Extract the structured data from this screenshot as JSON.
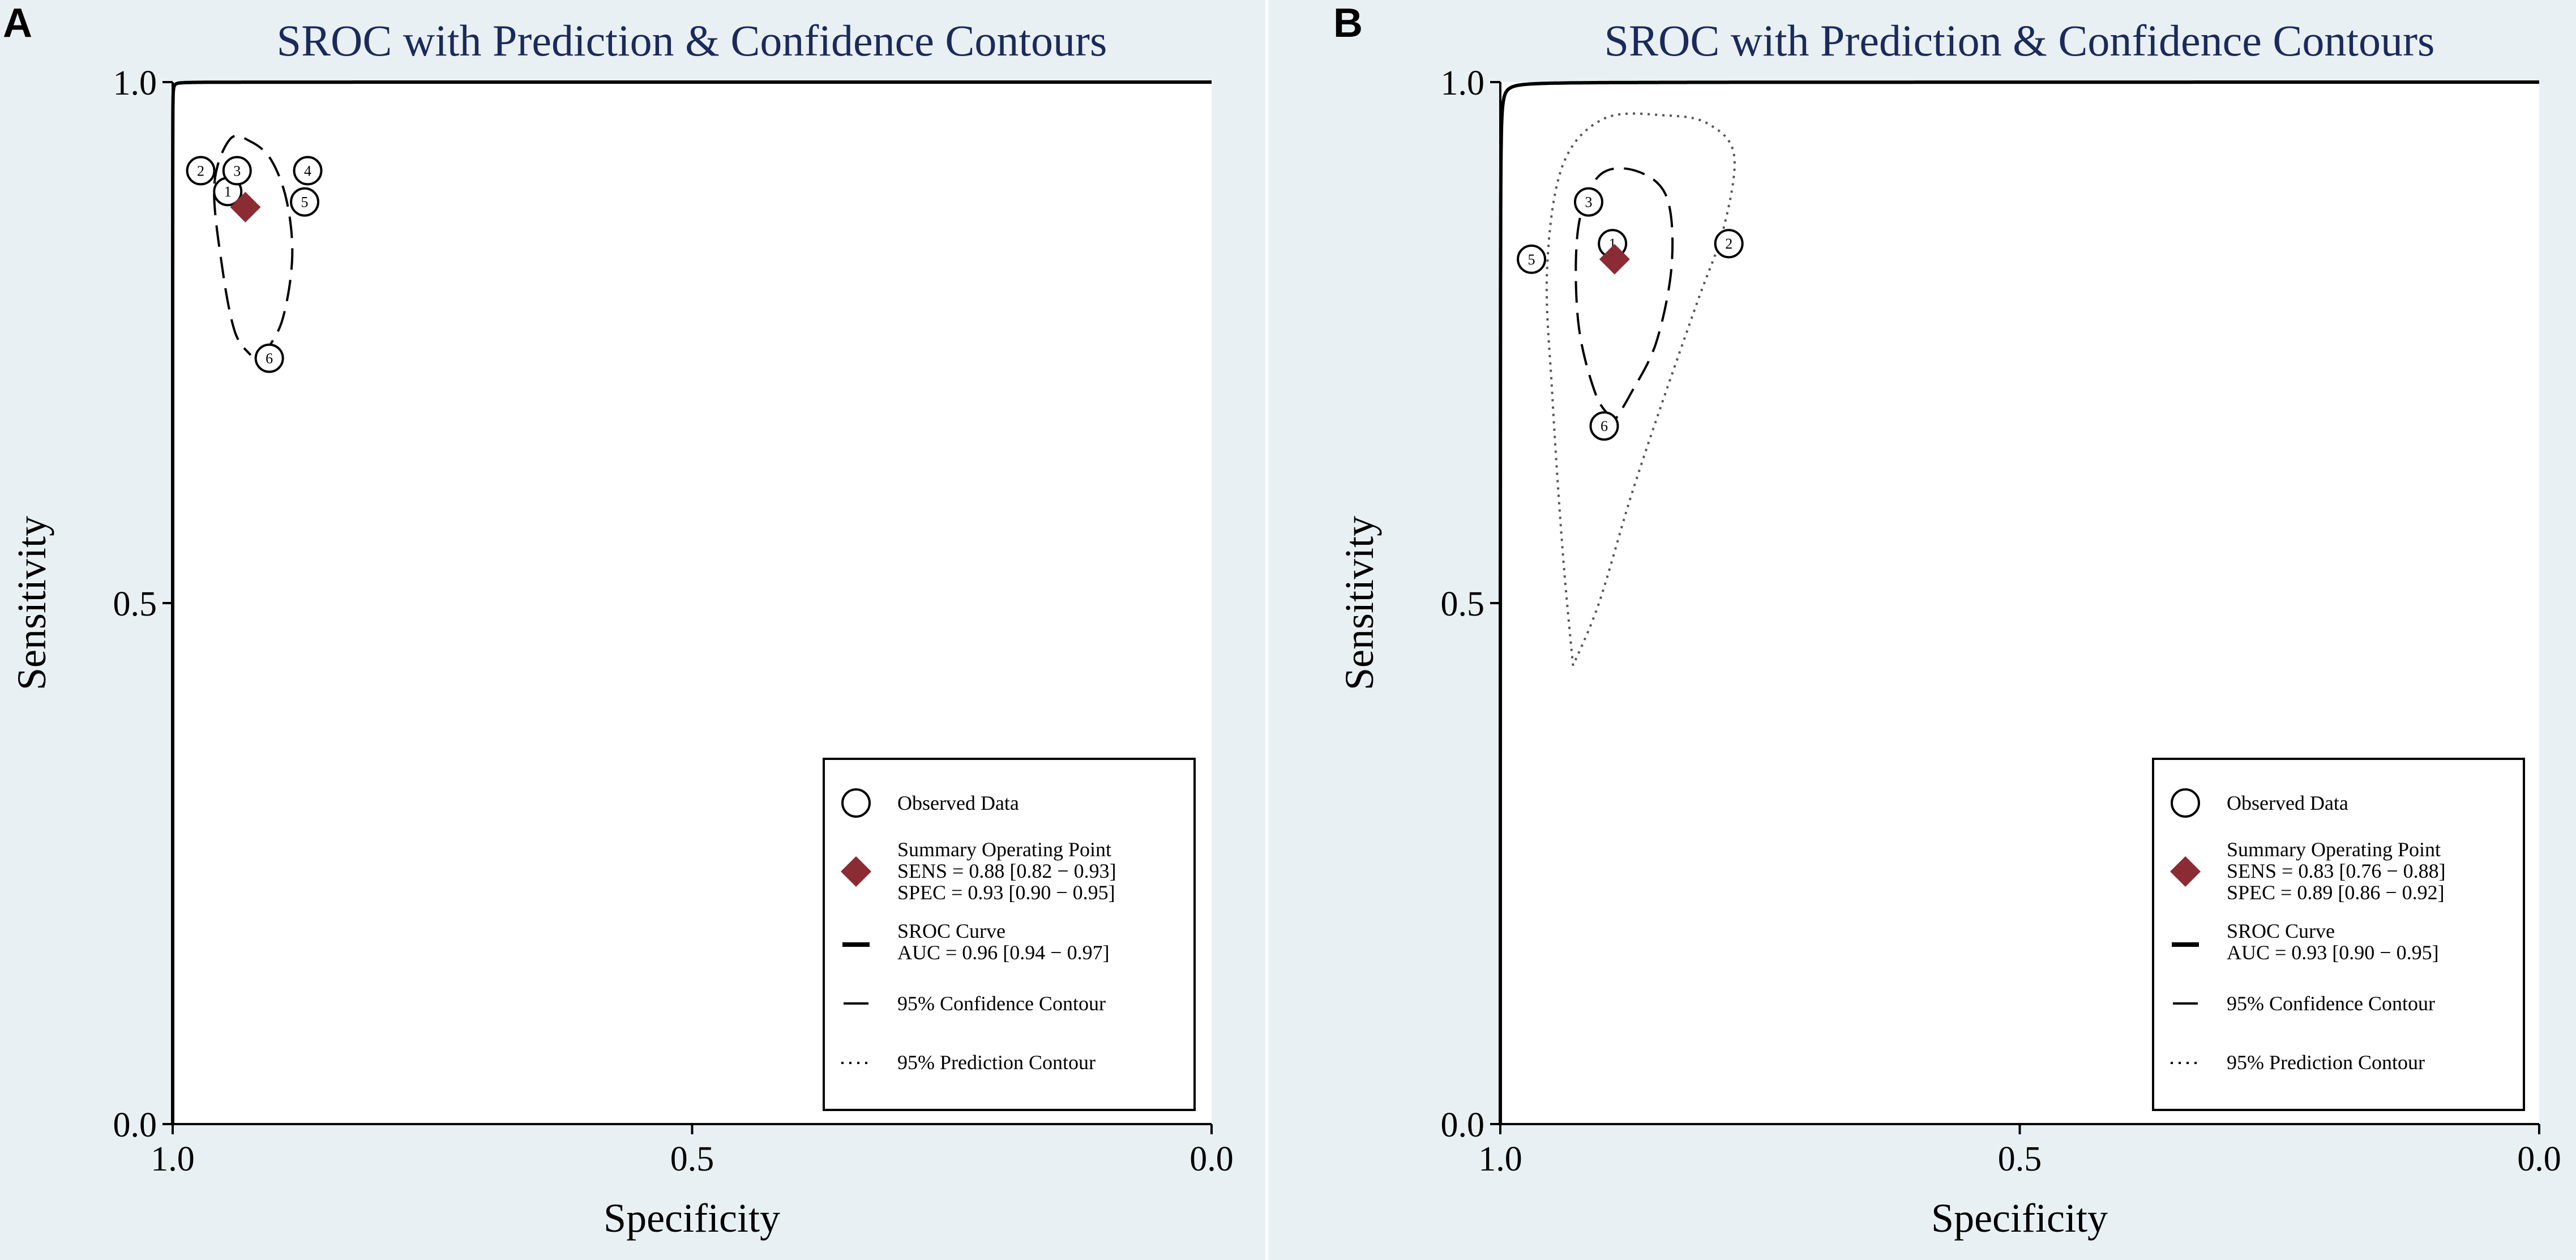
{
  "chart_data": [
    {
      "panel": "A",
      "type": "scatter",
      "title": "SROC with Prediction & Confidence Contours",
      "xlabel": "Specificity",
      "ylabel": "Sensitivity",
      "xlim": [
        1.0,
        0.0
      ],
      "ylim": [
        0.0,
        1.0
      ],
      "xticks": [
        "1.0",
        "0.5",
        "0.0"
      ],
      "yticks": [
        "0.0",
        "0.5",
        "1.0"
      ],
      "xtick_values": [
        1.0,
        0.5,
        0.0
      ],
      "ytick_values": [
        0.0,
        0.5,
        1.0
      ],
      "observed": [
        {
          "label": "1",
          "spec": 0.947,
          "sens": 0.895
        },
        {
          "label": "2",
          "spec": 0.973,
          "sens": 0.915
        },
        {
          "label": "3",
          "spec": 0.938,
          "sens": 0.915
        },
        {
          "label": "4",
          "spec": 0.87,
          "sens": 0.915
        },
        {
          "label": "5",
          "spec": 0.873,
          "sens": 0.885
        },
        {
          "label": "6",
          "spec": 0.907,
          "sens": 0.735
        }
      ],
      "summary_point": {
        "spec": 0.93,
        "sens": 0.88
      },
      "sroc_curve": {
        "auc": 0.96
      },
      "confidence_contour": {
        "center": {
          "spec": 0.925,
          "sens": 0.85
        },
        "points": [
          {
            "spec": 0.915,
            "sens": 0.735
          },
          {
            "spec": 0.895,
            "sens": 0.77
          },
          {
            "spec": 0.885,
            "sens": 0.83
          },
          {
            "spec": 0.89,
            "sens": 0.885
          },
          {
            "spec": 0.905,
            "sens": 0.925
          },
          {
            "spec": 0.925,
            "sens": 0.943
          },
          {
            "spec": 0.945,
            "sens": 0.945
          },
          {
            "spec": 0.96,
            "sens": 0.9
          },
          {
            "spec": 0.952,
            "sens": 0.82
          },
          {
            "spec": 0.94,
            "sens": 0.76
          },
          {
            "spec": 0.925,
            "sens": 0.738
          }
        ]
      },
      "prediction_contour": null,
      "legend": {
        "observed": "Observed Data",
        "summary_title": "Summary Operating Point",
        "sens": "SENS = 0.88 [0.82 − 0.93]",
        "spec": "SPEC = 0.93 [0.90 − 0.95]",
        "sroc_title": "SROC Curve",
        "auc": "AUC = 0.96 [0.94 − 0.97]",
        "conf": "95% Confidence Contour",
        "pred": "95% Prediction Contour"
      },
      "colors": {
        "summary": "#8b2c35",
        "line": "#000000"
      }
    },
    {
      "panel": "B",
      "type": "scatter",
      "title": "SROC with Prediction & Confidence Contours",
      "xlabel": "Specificity",
      "ylabel": "Sensitivity",
      "xlim": [
        1.0,
        0.0
      ],
      "ylim": [
        0.0,
        1.0
      ],
      "xticks": [
        "1.0",
        "0.5",
        "0.0"
      ],
      "yticks": [
        "0.0",
        "0.5",
        "1.0"
      ],
      "xtick_values": [
        1.0,
        0.5,
        0.0
      ],
      "ytick_values": [
        0.0,
        0.5,
        1.0
      ],
      "observed": [
        {
          "label": "1",
          "spec": 0.892,
          "sens": 0.845
        },
        {
          "label": "2",
          "spec": 0.78,
          "sens": 0.845
        },
        {
          "label": "3",
          "spec": 0.915,
          "sens": 0.885
        },
        {
          "label": "5",
          "spec": 0.97,
          "sens": 0.83
        },
        {
          "label": "6",
          "spec": 0.9,
          "sens": 0.67
        }
      ],
      "summary_point": {
        "spec": 0.89,
        "sens": 0.83
      },
      "sroc_curve": {
        "auc": 0.93
      },
      "confidence_contour": {
        "points": [
          {
            "spec": 0.89,
            "sens": 0.675
          },
          {
            "spec": 0.908,
            "sens": 0.7
          },
          {
            "spec": 0.925,
            "sens": 0.77
          },
          {
            "spec": 0.925,
            "sens": 0.86
          },
          {
            "spec": 0.905,
            "sens": 0.91
          },
          {
            "spec": 0.87,
            "sens": 0.915
          },
          {
            "spec": 0.84,
            "sens": 0.89
          },
          {
            "spec": 0.835,
            "sens": 0.825
          },
          {
            "spec": 0.85,
            "sens": 0.75
          },
          {
            "spec": 0.875,
            "sens": 0.7
          },
          {
            "spec": 0.89,
            "sens": 0.675
          }
        ]
      },
      "prediction_contour": {
        "points": [
          {
            "spec": 0.93,
            "sens": 0.44
          },
          {
            "spec": 0.94,
            "sens": 0.55
          },
          {
            "spec": 0.95,
            "sens": 0.7
          },
          {
            "spec": 0.955,
            "sens": 0.82
          },
          {
            "spec": 0.94,
            "sens": 0.92
          },
          {
            "spec": 0.9,
            "sens": 0.965
          },
          {
            "spec": 0.84,
            "sens": 0.968
          },
          {
            "spec": 0.8,
            "sens": 0.96
          },
          {
            "spec": 0.775,
            "sens": 0.93
          },
          {
            "spec": 0.785,
            "sens": 0.86
          },
          {
            "spec": 0.81,
            "sens": 0.79
          },
          {
            "spec": 0.845,
            "sens": 0.69
          },
          {
            "spec": 0.875,
            "sens": 0.6
          },
          {
            "spec": 0.905,
            "sens": 0.5
          },
          {
            "spec": 0.93,
            "sens": 0.44
          }
        ]
      },
      "legend": {
        "observed": "Observed Data",
        "summary_title": "Summary Operating Point",
        "sens": "SENS = 0.83 [0.76 − 0.88]",
        "spec": "SPEC = 0.89 [0.86 − 0.92]",
        "sroc_title": "SROC Curve",
        "auc": "AUC = 0.93 [0.90 − 0.95]",
        "conf": "95% Confidence Contour",
        "pred": "95% Prediction Contour"
      },
      "colors": {
        "summary": "#8b2c35",
        "line": "#000000"
      }
    }
  ]
}
